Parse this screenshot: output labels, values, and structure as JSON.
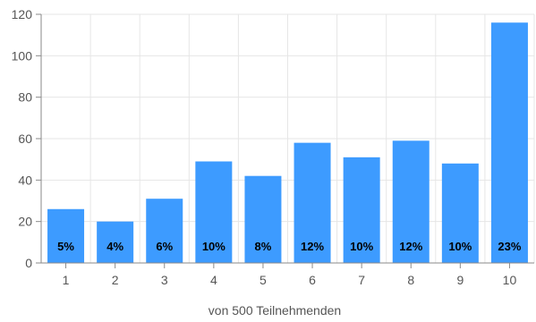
{
  "chart_data": {
    "type": "bar",
    "title": "",
    "xlabel": "von 500 Teilnehmenden",
    "ylabel": "",
    "categories": [
      "1",
      "2",
      "3",
      "4",
      "5",
      "6",
      "7",
      "8",
      "9",
      "10"
    ],
    "values": [
      26,
      20,
      31,
      49,
      42,
      58,
      51,
      59,
      48,
      116
    ],
    "data_labels": [
      "5%",
      "4%",
      "6%",
      "10%",
      "8%",
      "12%",
      "10%",
      "12%",
      "10%",
      "23%"
    ],
    "ylim": [
      0,
      120
    ],
    "yticks": [
      0,
      20,
      40,
      60,
      80,
      100,
      120
    ],
    "grid": true,
    "legend": "none",
    "colors": {
      "bar": "#3d9bff",
      "grid": "#e6e6e6",
      "axis": "#8a8a8a",
      "tick_text": "#555555",
      "data_label": "#000000"
    }
  }
}
